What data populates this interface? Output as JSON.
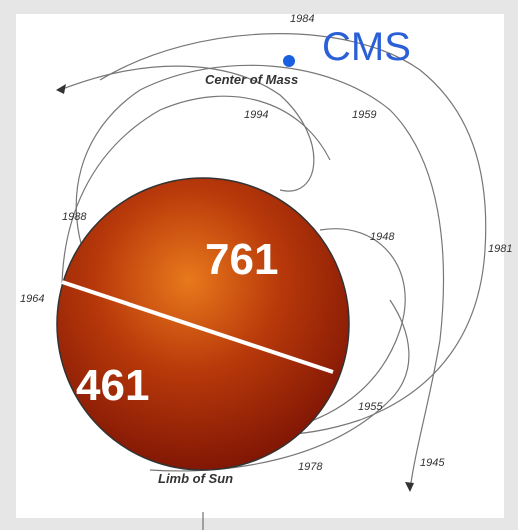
{
  "header": {
    "title": "CMS"
  },
  "labels": {
    "center_of_mass": "Center of Mass",
    "limb_of_sun": "Limb of Sun",
    "upper_number": "761",
    "lower_number": "461"
  },
  "years": [
    "1984",
    "1994",
    "1959",
    "1988",
    "1948",
    "1981",
    "1964",
    "1955",
    "1945",
    "1978"
  ]
}
